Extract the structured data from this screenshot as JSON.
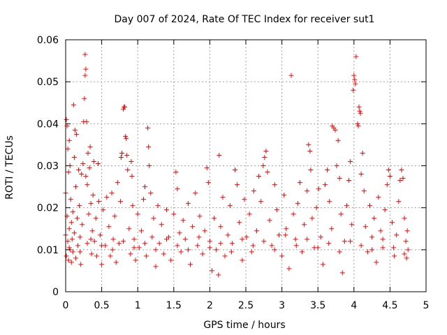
{
  "chart_data": {
    "type": "scatter",
    "title": "Day 007 of 2024, Rate Of TEC Index for receiver sut1",
    "xlabel": "GPS time / hours",
    "ylabel": "ROTI / TECUs",
    "xlim": [
      0,
      5
    ],
    "ylim": [
      0,
      0.06
    ],
    "grid": true,
    "marker": "+",
    "x_ticks": [
      {
        "value": 0,
        "label": "0"
      },
      {
        "value": 0.5,
        "label": "0.5"
      },
      {
        "value": 1,
        "label": "1"
      },
      {
        "value": 1.5,
        "label": "1.5"
      },
      {
        "value": 2,
        "label": "2"
      },
      {
        "value": 2.5,
        "label": "2.5"
      },
      {
        "value": 3,
        "label": "3"
      },
      {
        "value": 3.5,
        "label": "3.5"
      },
      {
        "value": 4,
        "label": "4"
      },
      {
        "value": 4.5,
        "label": "4.5"
      },
      {
        "value": 5,
        "label": "5"
      }
    ],
    "y_ticks": [
      {
        "value": 0,
        "label": "0"
      },
      {
        "value": 0.01,
        "label": "0.01"
      },
      {
        "value": 0.02,
        "label": "0.02"
      },
      {
        "value": 0.03,
        "label": "0.03"
      },
      {
        "value": 0.04,
        "label": "0.04"
      },
      {
        "value": 0.05,
        "label": "0.05"
      },
      {
        "value": 0.06,
        "label": "0.06"
      }
    ],
    "series": [
      {
        "name": "ROTI",
        "color": "#ff0000",
        "points": [
          [
            0.0,
            0.0135
          ],
          [
            0.0,
            0.0235
          ],
          [
            0.01,
            0.041
          ],
          [
            0.01,
            0.0085
          ],
          [
            0.02,
            0.018
          ],
          [
            0.02,
            0.0395
          ],
          [
            0.03,
            0.012
          ],
          [
            0.03,
            0.034
          ],
          [
            0.04,
            0.0285
          ],
          [
            0.04,
            0.0075
          ],
          [
            0.05,
            0.015
          ],
          [
            0.05,
            0.036
          ],
          [
            0.06,
            0.03
          ],
          [
            0.06,
            0.01
          ],
          [
            0.07,
            0.022
          ],
          [
            0.08,
            0.0165
          ],
          [
            0.08,
            0.007
          ],
          [
            0.09,
            0.0125
          ],
          [
            0.1,
            0.019
          ],
          [
            0.1,
            0.0095
          ],
          [
            0.11,
            0.0445
          ],
          [
            0.12,
            0.032
          ],
          [
            0.12,
            0.014
          ],
          [
            0.13,
            0.0385
          ],
          [
            0.14,
            0.025
          ],
          [
            0.14,
            0.008
          ],
          [
            0.15,
            0.0375
          ],
          [
            0.16,
            0.0175
          ],
          [
            0.17,
            0.011
          ],
          [
            0.18,
            0.029
          ],
          [
            0.19,
            0.0205
          ],
          [
            0.2,
            0.013
          ],
          [
            0.21,
            0.0065
          ],
          [
            0.22,
            0.028
          ],
          [
            0.23,
            0.016
          ],
          [
            0.24,
            0.0305
          ],
          [
            0.25,
            0.0405
          ],
          [
            0.26,
            0.046
          ],
          [
            0.27,
            0.0515
          ],
          [
            0.27,
            0.0565
          ],
          [
            0.28,
            0.053
          ],
          [
            0.28,
            0.0275
          ],
          [
            0.29,
            0.0405
          ],
          [
            0.3,
            0.0255
          ],
          [
            0.3,
            0.0115
          ],
          [
            0.31,
            0.033
          ],
          [
            0.32,
            0.0185
          ],
          [
            0.33,
            0.0295
          ],
          [
            0.34,
            0.0345
          ],
          [
            0.35,
            0.021
          ],
          [
            0.36,
            0.009
          ],
          [
            0.37,
            0.0145
          ],
          [
            0.38,
            0.023
          ],
          [
            0.39,
            0.031
          ],
          [
            0.4,
            0.012
          ],
          [
            0.42,
            0.0175
          ],
          [
            0.43,
            0.0085
          ],
          [
            0.45,
            0.0305
          ],
          [
            0.46,
            0.0215
          ],
          [
            0.48,
            0.0135
          ],
          [
            0.5,
            0.0065
          ],
          [
            0.52,
            0.0195
          ],
          [
            0.55,
            0.011
          ],
          [
            0.57,
            0.0225
          ],
          [
            0.6,
            0.0155
          ],
          [
            0.62,
            0.0085
          ],
          [
            0.64,
            0.0235
          ],
          [
            0.66,
            0.0125
          ],
          [
            0.68,
            0.018
          ],
          [
            0.7,
            0.007
          ],
          [
            0.72,
            0.026
          ],
          [
            0.74,
            0.0115
          ],
          [
            0.76,
            0.0215
          ],
          [
            0.77,
            0.032
          ],
          [
            0.78,
            0.033
          ],
          [
            0.8,
            0.0435
          ],
          [
            0.81,
            0.044
          ],
          [
            0.82,
            0.044
          ],
          [
            0.83,
            0.037
          ],
          [
            0.84,
            0.0365
          ],
          [
            0.85,
            0.0325
          ],
          [
            0.86,
            0.029
          ],
          [
            0.88,
            0.015
          ],
          [
            0.9,
            0.009
          ],
          [
            0.91,
            0.031
          ],
          [
            0.92,
            0.0275
          ],
          [
            0.93,
            0.0205
          ],
          [
            0.95,
            0.0125
          ],
          [
            0.97,
            0.0075
          ],
          [
            1.0,
            0.0185
          ],
          [
            1.02,
            0.0105
          ],
          [
            1.05,
            0.0145
          ],
          [
            1.08,
            0.022
          ],
          [
            1.1,
            0.025
          ],
          [
            1.12,
            0.0085
          ],
          [
            1.14,
            0.039
          ],
          [
            1.15,
            0.0345
          ],
          [
            1.16,
            0.03
          ],
          [
            1.18,
            0.0235
          ],
          [
            1.2,
            0.013
          ],
          [
            1.22,
            0.0175
          ],
          [
            1.25,
            0.006
          ],
          [
            1.28,
            0.0205
          ],
          [
            1.3,
            0.0115
          ],
          [
            1.33,
            0.016
          ],
          [
            1.36,
            0.009
          ],
          [
            1.4,
            0.0195
          ],
          [
            1.43,
            0.013
          ],
          [
            1.46,
            0.0075
          ],
          [
            1.5,
            0.0185
          ],
          [
            1.53,
            0.0285
          ],
          [
            1.55,
            0.0245
          ],
          [
            1.58,
            0.014
          ],
          [
            1.6,
            0.0095
          ],
          [
            1.63,
            0.017
          ],
          [
            1.66,
            0.0125
          ],
          [
            1.7,
            0.021
          ],
          [
            1.73,
            0.0065
          ],
          [
            1.76,
            0.0155
          ],
          [
            1.8,
            0.0235
          ],
          [
            1.83,
            0.011
          ],
          [
            1.86,
            0.018
          ],
          [
            1.9,
            0.009
          ],
          [
            1.93,
            0.0145
          ],
          [
            1.96,
            0.0295
          ],
          [
            1.98,
            0.026
          ],
          [
            2.0,
            0.012
          ],
          [
            2.03,
            0.005
          ],
          [
            2.06,
            0.0175
          ],
          [
            2.09,
            0.01
          ],
          [
            2.12,
            0.004
          ],
          [
            2.13,
            0.0325
          ],
          [
            2.15,
            0.0155
          ],
          [
            2.18,
            0.0225
          ],
          [
            2.21,
            0.0085
          ],
          [
            2.25,
            0.0135
          ],
          [
            2.28,
            0.0205
          ],
          [
            2.31,
            0.0115
          ],
          [
            2.35,
            0.029
          ],
          [
            2.38,
            0.0255
          ],
          [
            2.41,
            0.0165
          ],
          [
            2.45,
            0.0075
          ],
          [
            2.48,
            0.022
          ],
          [
            2.51,
            0.013
          ],
          [
            2.55,
            0.0185
          ],
          [
            2.58,
            0.0095
          ],
          [
            2.61,
            0.024
          ],
          [
            2.65,
            0.0145
          ],
          [
            2.68,
            0.0275
          ],
          [
            2.71,
            0.0215
          ],
          [
            2.74,
            0.03
          ],
          [
            2.76,
            0.032
          ],
          [
            2.78,
            0.0335
          ],
          [
            2.8,
            0.0285
          ],
          [
            2.83,
            0.017
          ],
          [
            2.86,
            0.011
          ],
          [
            2.9,
            0.0255
          ],
          [
            2.93,
            0.0195
          ],
          [
            2.96,
            0.0135
          ],
          [
            3.0,
            0.0085
          ],
          [
            3.03,
            0.023
          ],
          [
            3.06,
            0.015
          ],
          [
            3.1,
            0.0055
          ],
          [
            3.13,
            0.0515
          ],
          [
            3.16,
            0.0185
          ],
          [
            3.19,
            0.0125
          ],
          [
            3.22,
            0.021
          ],
          [
            3.25,
            0.026
          ],
          [
            3.28,
            0.0095
          ],
          [
            3.31,
            0.016
          ],
          [
            3.35,
            0.024
          ],
          [
            3.37,
            0.035
          ],
          [
            3.39,
            0.0335
          ],
          [
            3.4,
            0.029
          ],
          [
            3.42,
            0.0175
          ],
          [
            3.45,
            0.0105
          ],
          [
            3.48,
            0.02
          ],
          [
            3.51,
            0.0245
          ],
          [
            3.54,
            0.013
          ],
          [
            3.57,
            0.0065
          ],
          [
            3.6,
            0.0255
          ],
          [
            3.63,
            0.029
          ],
          [
            3.66,
            0.0215
          ],
          [
            3.69,
            0.015
          ],
          [
            3.7,
            0.0395
          ],
          [
            3.72,
            0.039
          ],
          [
            3.74,
            0.0385
          ],
          [
            3.76,
            0.03
          ],
          [
            3.78,
            0.036
          ],
          [
            3.8,
            0.027
          ],
          [
            3.82,
            0.0185
          ],
          [
            3.84,
            0.0045
          ],
          [
            3.87,
            0.012
          ],
          [
            3.9,
            0.0205
          ],
          [
            3.93,
            0.0265
          ],
          [
            3.95,
            0.031
          ],
          [
            3.97,
            0.016
          ],
          [
            3.99,
            0.048
          ],
          [
            4.0,
            0.0515
          ],
          [
            4.01,
            0.0505
          ],
          [
            4.02,
            0.0495
          ],
          [
            4.03,
            0.056
          ],
          [
            4.05,
            0.04
          ],
          [
            4.06,
            0.0395
          ],
          [
            4.07,
            0.044
          ],
          [
            4.08,
            0.043
          ],
          [
            4.09,
            0.0425
          ],
          [
            4.1,
            0.028
          ],
          [
            4.12,
            0.033
          ],
          [
            4.14,
            0.024
          ],
          [
            4.16,
            0.0155
          ],
          [
            4.19,
            0.0095
          ],
          [
            4.22,
            0.0205
          ],
          [
            4.25,
            0.013
          ],
          [
            4.28,
            0.0175
          ],
          [
            4.31,
            0.007
          ],
          [
            4.34,
            0.0225
          ],
          [
            4.37,
            0.0145
          ],
          [
            4.4,
            0.0105
          ],
          [
            4.43,
            0.0195
          ],
          [
            4.46,
            0.0255
          ],
          [
            4.48,
            0.029
          ],
          [
            4.5,
            0.0275
          ],
          [
            4.53,
            0.0165
          ],
          [
            4.56,
            0.0085
          ],
          [
            4.59,
            0.0135
          ],
          [
            4.62,
            0.0215
          ],
          [
            4.64,
            0.0265
          ],
          [
            4.66,
            0.029
          ],
          [
            4.68,
            0.027
          ],
          [
            4.7,
            0.0175
          ],
          [
            4.72,
            0.012
          ],
          [
            4.73,
            0.008
          ],
          [
            4.74,
            0.0145
          ],
          [
            4.75,
            0.01
          ],
          [
            0.05,
            0.0105
          ],
          [
            0.2,
            0.0095
          ],
          [
            0.35,
            0.0125
          ],
          [
            0.5,
            0.011
          ],
          [
            0.65,
            0.01
          ],
          [
            0.8,
            0.012
          ],
          [
            0.95,
            0.0105
          ],
          [
            1.1,
            0.0115
          ],
          [
            1.25,
            0.01
          ],
          [
            1.4,
            0.0125
          ],
          [
            1.55,
            0.011
          ],
          [
            1.7,
            0.01
          ],
          [
            1.85,
            0.013
          ],
          [
            2.0,
            0.0105
          ],
          [
            2.15,
            0.0115
          ],
          [
            2.3,
            0.0095
          ],
          [
            2.45,
            0.0125
          ],
          [
            2.6,
            0.011
          ],
          [
            2.75,
            0.012
          ],
          [
            2.9,
            0.01
          ],
          [
            3.05,
            0.0135
          ],
          [
            3.2,
            0.011
          ],
          [
            3.35,
            0.0125
          ],
          [
            3.5,
            0.0105
          ],
          [
            3.65,
            0.0115
          ],
          [
            3.8,
            0.0095
          ],
          [
            3.95,
            0.012
          ],
          [
            4.1,
            0.011
          ],
          [
            4.25,
            0.01
          ],
          [
            4.4,
            0.0125
          ],
          [
            4.55,
            0.0105
          ],
          [
            4.7,
            0.009
          ]
        ]
      }
    ]
  }
}
